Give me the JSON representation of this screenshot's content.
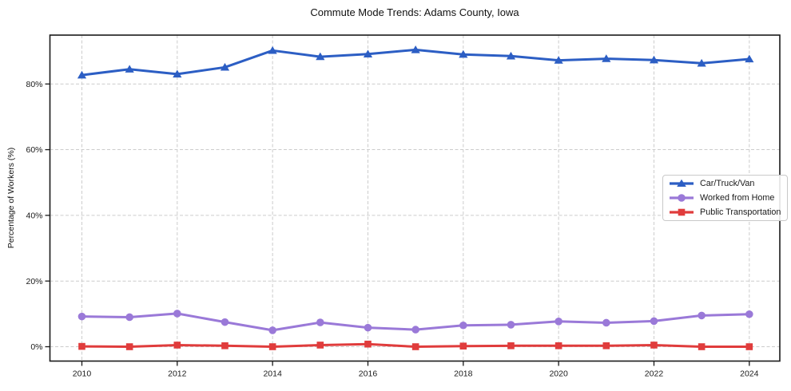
{
  "chart_data": {
    "type": "line",
    "title": "Commute Mode Trends: Adams County, Iowa",
    "xlabel": "",
    "ylabel": "Percentage of Workers (%)",
    "x": [
      2010,
      2011,
      2012,
      2013,
      2014,
      2015,
      2016,
      2017,
      2018,
      2019,
      2020,
      2021,
      2022,
      2023,
      2024
    ],
    "series": [
      {
        "name": "Car/Truck/Van",
        "color": "#2c5ec4",
        "marker": "triangle",
        "values": [
          82.7,
          84.5,
          83.0,
          85.1,
          90.2,
          88.3,
          89.1,
          90.4,
          89.0,
          88.5,
          87.2,
          87.7,
          87.3,
          86.3,
          87.6
        ]
      },
      {
        "name": "Worked from Home",
        "color": "#9a79d8",
        "marker": "circle",
        "values": [
          9.2,
          9.0,
          10.1,
          7.5,
          5.0,
          7.4,
          5.8,
          5.2,
          6.5,
          6.7,
          7.7,
          7.3,
          7.8,
          9.5,
          9.9
        ]
      },
      {
        "name": "Public Transportation",
        "color": "#e03c3c",
        "marker": "square",
        "values": [
          0.1,
          0.0,
          0.5,
          0.3,
          0.0,
          0.5,
          0.8,
          0.0,
          0.2,
          0.3,
          0.3,
          0.3,
          0.5,
          0.0,
          0.0
        ]
      }
    ],
    "xticks": {
      "values": [
        2010,
        2012,
        2014,
        2016,
        2018,
        2020,
        2022,
        2024
      ],
      "labels": [
        "2010",
        "2012",
        "2014",
        "2016",
        "2018",
        "2020",
        "2022",
        "2024"
      ]
    },
    "yticks": {
      "values": [
        0,
        20,
        40,
        60,
        80
      ],
      "labels": [
        "0%",
        "20%",
        "40%",
        "60%",
        "80%"
      ]
    },
    "xlim": [
      2009.33,
      2024.64
    ],
    "ylim": [
      -4.37,
      94.88
    ],
    "grid": true,
    "legend_position": "center right"
  },
  "style_colors": {
    "grid": "#cccccc",
    "spine": "#1a1a1a",
    "background": "#ffffff"
  }
}
